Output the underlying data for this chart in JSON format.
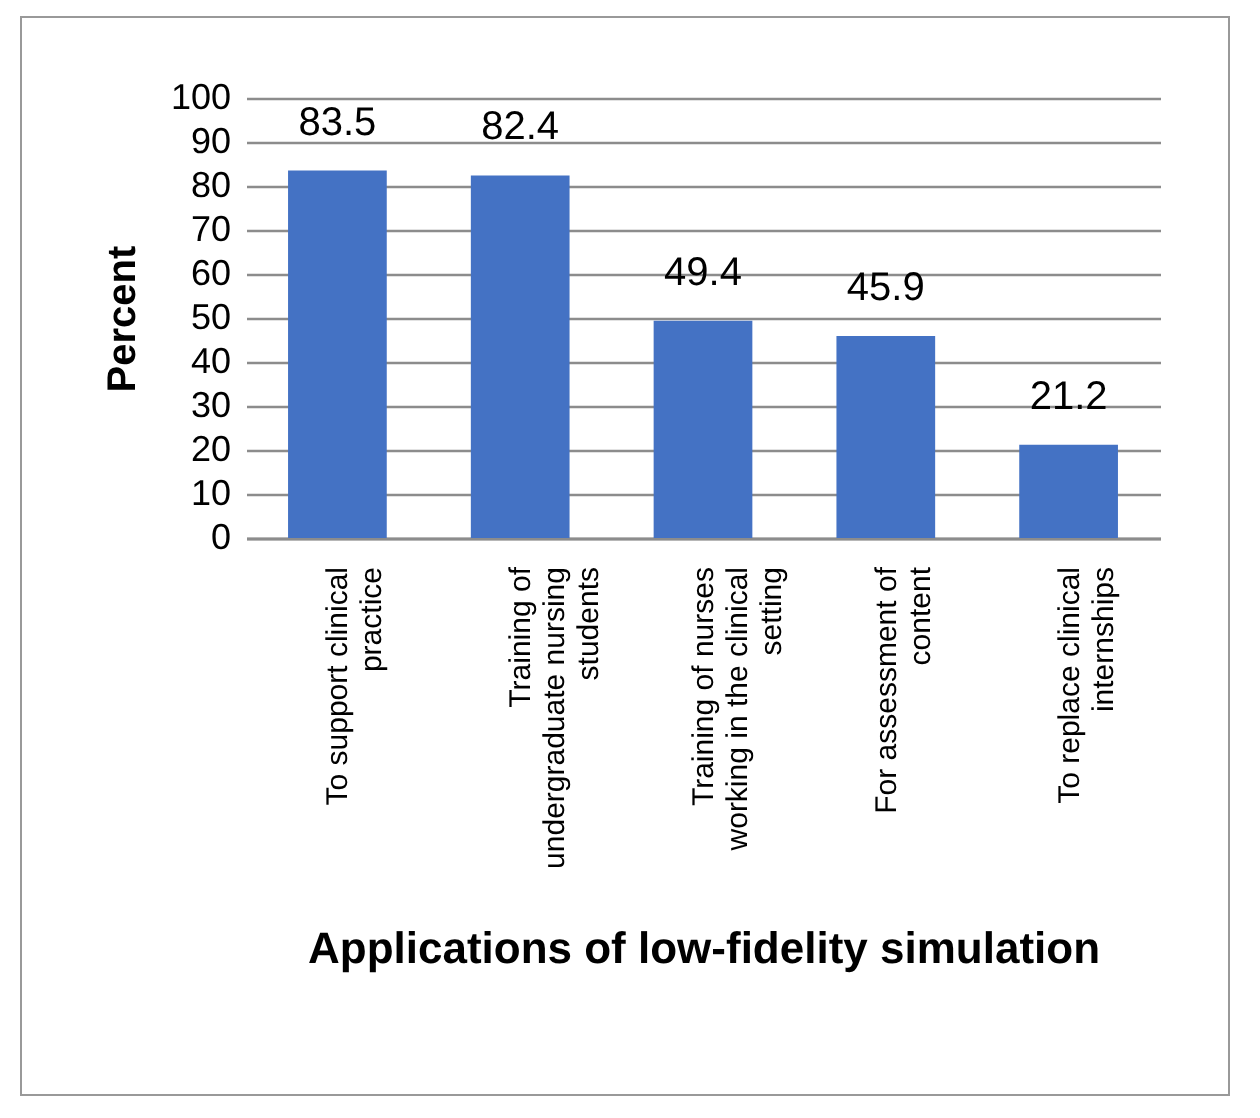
{
  "chart_data": {
    "type": "bar",
    "xlabel": "Applications of low-fidelity simulation",
    "ylabel": "Percent",
    "categories": [
      "To support clinical practice",
      "Training of undergraduate nursing students",
      "Training of nurses working in the clinical setting",
      "For assessment of content",
      "To replace clinical internships"
    ],
    "values": [
      83.5,
      82.4,
      49.4,
      45.9,
      21.2
    ],
    "color": "#4472c4",
    "ylim": [
      0,
      100
    ],
    "yticks": [
      0,
      10,
      20,
      30,
      40,
      50,
      60,
      70,
      80,
      90,
      100
    ],
    "grid": "y",
    "data_labels": true
  }
}
